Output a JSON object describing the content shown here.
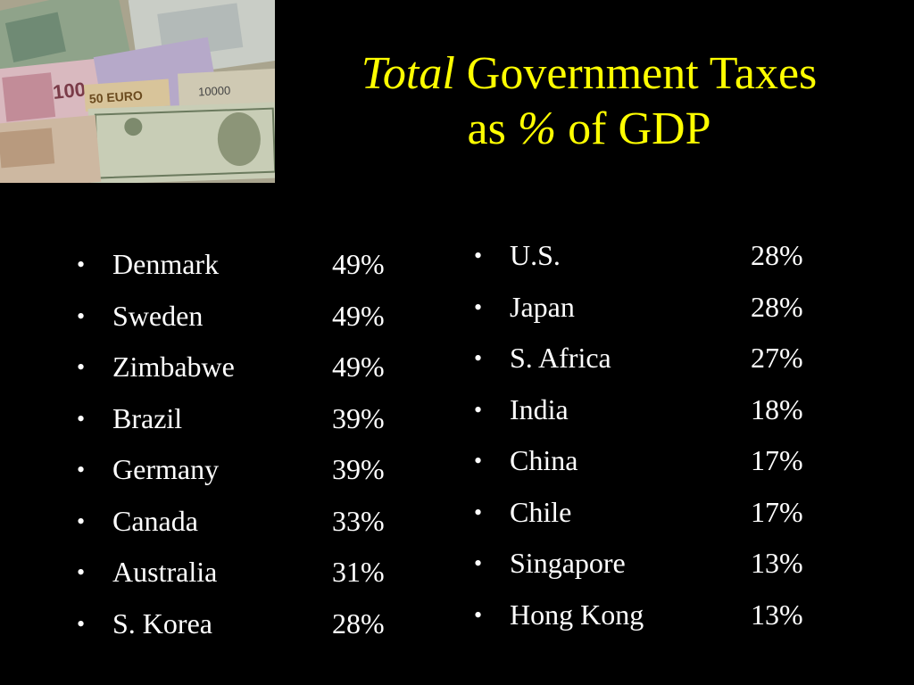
{
  "title": {
    "italic": "Total",
    "line1_rest": " Government Taxes",
    "line2_pre": "as ",
    "line2_italic": "%",
    "line2_post": " of GDP"
  },
  "colors": {
    "background": "#000000",
    "title": "#ffff00",
    "text": "#ffffff"
  },
  "bullet_glyph": "•",
  "photo": {
    "subject": "banknotes-image",
    "note_texts": [
      "100",
      "50 EURO",
      "10000"
    ]
  },
  "left_list": [
    {
      "country": "Denmark",
      "pct": "49%"
    },
    {
      "country": "Sweden",
      "pct": "49%"
    },
    {
      "country": "Zimbabwe",
      "pct": "49%"
    },
    {
      "country": "Brazil",
      "pct": "39%"
    },
    {
      "country": "Germany",
      "pct": "39%"
    },
    {
      "country": "Canada",
      "pct": "33%"
    },
    {
      "country": "Australia",
      "pct": "31%"
    },
    {
      "country": "S. Korea",
      "pct": "28%"
    }
  ],
  "right_list": [
    {
      "country": "U.S.",
      "pct": "28%"
    },
    {
      "country": "Japan",
      "pct": "28%"
    },
    {
      "country": "S. Africa",
      "pct": "27%"
    },
    {
      "country": "India",
      "pct": "18%"
    },
    {
      "country": "China",
      "pct": "17%"
    },
    {
      "country": "Chile",
      "pct": "17%"
    },
    {
      "country": "Singapore",
      "pct": "13%"
    },
    {
      "country": "Hong Kong",
      "pct": "13%"
    }
  ]
}
